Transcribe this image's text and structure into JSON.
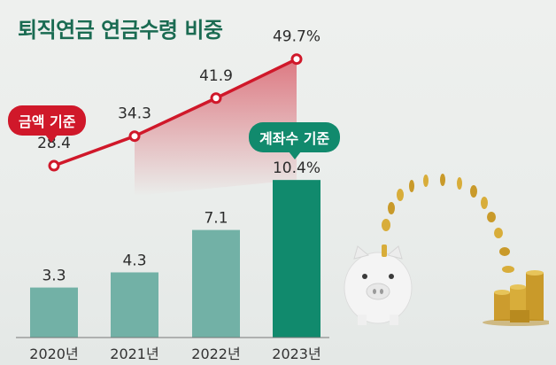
{
  "title": "퇴직연금 연금수령 비중",
  "badges": {
    "amount": "금액 기준",
    "account": "계좌수 기준"
  },
  "colors": {
    "title": "#1a6b52",
    "line": "#d0182a",
    "bar": "#72b1a6",
    "bar_highlight": "#118a6d"
  },
  "chart_data": {
    "type": "bar",
    "categories": [
      "2020년",
      "2021년",
      "2022년",
      "2023년"
    ],
    "series": [
      {
        "name": "계좌수 기준",
        "type": "bar",
        "values": [
          3.3,
          4.3,
          7.1,
          10.4
        ],
        "labels": [
          "3.3",
          "4.3",
          "7.1",
          "10.4%"
        ]
      },
      {
        "name": "금액 기준",
        "type": "line",
        "values": [
          28.4,
          34.3,
          41.9,
          49.7
        ],
        "labels": [
          "28.4",
          "34.3",
          "41.9",
          "49.7%"
        ]
      }
    ],
    "title": "퇴직연금 연금수령 비중",
    "xlabel": "",
    "ylabel": "",
    "grid": false
  }
}
